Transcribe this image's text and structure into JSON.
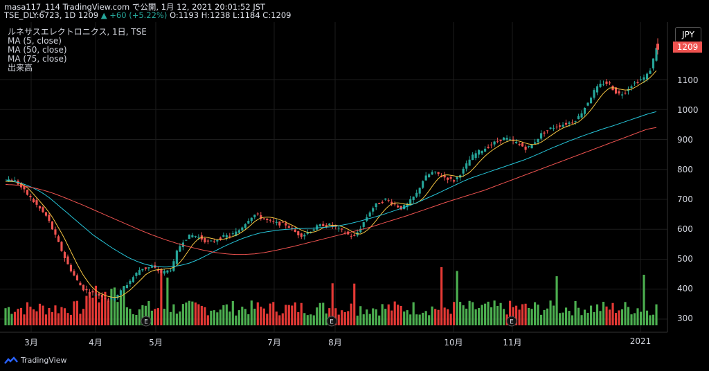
{
  "header": {
    "line1": "masa117_114 TradingView.com で公開, 1月 12, 2021 20:01:52 JST",
    "line2_prefix": "TSE_DLY:6723, 1D 1209",
    "line2_change": "▲ +60 (+5.22%)",
    "ohlc": "O:1193 H:1238 L:1184 C:1209"
  },
  "legend": {
    "title": "ルネサスエレクトロニクス, 1日, TSE",
    "ma5": "MA (5, close)",
    "ma50": "MA (50, close)",
    "ma75": "MA (75, close)",
    "volume": "出来高"
  },
  "price_axis": {
    "currency": "JPY",
    "last_price": "1209",
    "ticks": [
      "1100",
      "1000",
      "900",
      "800",
      "700",
      "600",
      "500",
      "400",
      "300"
    ]
  },
  "time_axis": {
    "ticks": [
      "3月",
      "4月",
      "5月",
      "7月",
      "8月",
      "10月",
      "11月",
      "2021"
    ]
  },
  "footer": {
    "brand": "TradingView"
  },
  "colors": {
    "up": "#26a69a",
    "down": "#ef5350",
    "ma5": "#f5c542",
    "ma50": "#26c6da",
    "ma75": "#ef5350",
    "vol_up": "#4caf50",
    "vol_down": "#e53935"
  },
  "chart_data": {
    "type": "candlestick",
    "title": "ルネサスエレクトロニクス, 1日, TSE",
    "ylim": [
      260,
      1260
    ],
    "last_close": 1209,
    "months": [
      "3月",
      "4月",
      "5月",
      "7月",
      "8月",
      "10月",
      "11月",
      "2021"
    ],
    "close_path": [
      760,
      770,
      760,
      740,
      720,
      700,
      680,
      660,
      640,
      600,
      560,
      520,
      480,
      450,
      420,
      400,
      390,
      385,
      380,
      372,
      365,
      375,
      390,
      410,
      430,
      450,
      470,
      470,
      475,
      465,
      455,
      460,
      470,
      530,
      560,
      575,
      580,
      575,
      565,
      555,
      560,
      570,
      575,
      580,
      585,
      600,
      620,
      640,
      650,
      640,
      630,
      625,
      620,
      618,
      615,
      600,
      585,
      580,
      590,
      600,
      610,
      615,
      615,
      610,
      600,
      590,
      580,
      575,
      600,
      630,
      660,
      680,
      690,
      700,
      690,
      680,
      670,
      680,
      700,
      720,
      760,
      780,
      790,
      785,
      775,
      770,
      760,
      780,
      800,
      830,
      850,
      860,
      870,
      880,
      890,
      900,
      905,
      895,
      890,
      880,
      870,
      880,
      900,
      920,
      930,
      940,
      945,
      950,
      955,
      960,
      975,
      1000,
      1030,
      1060,
      1080,
      1090,
      1085,
      1060,
      1050,
      1060,
      1080,
      1090,
      1100,
      1110,
      1140,
      1209
    ],
    "ma5_path": [
      760,
      760,
      758,
      752,
      742,
      725,
      705,
      685,
      665,
      640,
      610,
      580,
      545,
      510,
      475,
      445,
      420,
      400,
      388,
      380,
      374,
      372,
      375,
      385,
      398,
      415,
      432,
      450,
      460,
      465,
      466,
      468,
      470,
      480,
      500,
      525,
      550,
      568,
      575,
      572,
      568,
      565,
      567,
      572,
      578,
      586,
      598,
      612,
      628,
      638,
      641,
      640,
      636,
      630,
      622,
      614,
      605,
      595,
      590,
      590,
      595,
      605,
      612,
      614,
      612,
      607,
      598,
      588,
      583,
      590,
      605,
      625,
      648,
      668,
      684,
      689,
      687,
      683,
      683,
      688,
      700,
      720,
      745,
      768,
      781,
      782,
      779,
      775,
      778,
      788,
      805,
      825,
      843,
      858,
      870,
      881,
      891,
      897,
      897,
      893,
      887,
      883,
      884,
      892,
      904,
      916,
      928,
      938,
      945,
      951,
      958,
      972,
      990,
      1012,
      1036,
      1058,
      1072,
      1073,
      1068,
      1065,
      1066,
      1075,
      1086,
      1096,
      1110,
      1130
    ],
    "ma50_path": [
      765,
      760,
      752,
      740,
      725,
      705,
      680,
      655,
      630,
      605,
      580,
      560,
      540,
      522,
      505,
      492,
      482,
      476,
      474,
      475,
      480,
      488,
      500,
      515,
      530,
      545,
      558,
      570,
      580,
      588,
      593,
      597,
      600,
      602,
      603,
      604,
      606,
      608,
      612,
      618,
      625,
      633,
      641,
      650,
      660,
      670,
      680,
      692,
      705,
      718,
      732,
      746,
      760,
      772,
      782,
      792,
      802,
      812,
      822,
      832,
      844,
      857,
      870,
      882,
      894,
      905,
      916,
      926,
      936,
      945,
      955,
      965,
      975,
      985,
      993
    ],
    "ma75_path": [
      750,
      748,
      744,
      738,
      730,
      720,
      708,
      695,
      682,
      668,
      654,
      640,
      626,
      612,
      598,
      585,
      573,
      562,
      552,
      543,
      535,
      528,
      522,
      518,
      516,
      516,
      518,
      522,
      528,
      535,
      542,
      550,
      558,
      566,
      574,
      582,
      590,
      598,
      606,
      616,
      626,
      636,
      646,
      657,
      668,
      679,
      690,
      700,
      710,
      720,
      730,
      742,
      754,
      766,
      778,
      790,
      802,
      814,
      826,
      838,
      850,
      862,
      874,
      886,
      898,
      910,
      922,
      934,
      940
    ]
  }
}
